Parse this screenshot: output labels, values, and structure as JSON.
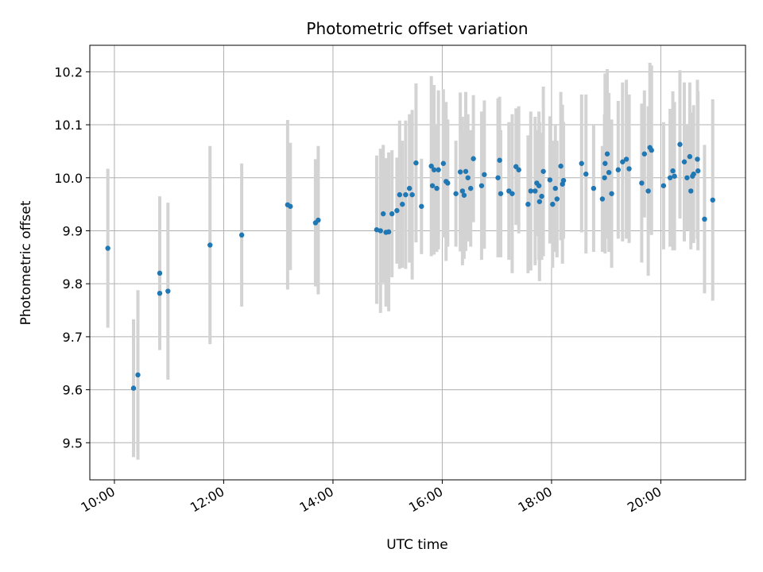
{
  "chart_data": {
    "type": "scatter",
    "title": "Photometric offset variation",
    "xlabel": "UTC time",
    "ylabel": "Photometric offset",
    "x_unit": "hours UTC",
    "xlim": [
      9.55,
      21.55
    ],
    "ylim": [
      9.43,
      10.25
    ],
    "grid": true,
    "x_ticks": [
      {
        "value": 10,
        "label": "10:00"
      },
      {
        "value": 12,
        "label": "12:00"
      },
      {
        "value": 14,
        "label": "14:00"
      },
      {
        "value": 16,
        "label": "16:00"
      },
      {
        "value": 18,
        "label": "18:00"
      },
      {
        "value": 20,
        "label": "20:00"
      }
    ],
    "y_ticks": [
      {
        "value": 9.5,
        "label": "9.5"
      },
      {
        "value": 9.6,
        "label": "9.6"
      },
      {
        "value": 9.7,
        "label": "9.7"
      },
      {
        "value": 9.8,
        "label": "9.8"
      },
      {
        "value": 9.9,
        "label": "9.9"
      },
      {
        "value": 10.0,
        "label": "10.0"
      },
      {
        "value": 10.1,
        "label": "10.1"
      },
      {
        "value": 10.2,
        "label": "10.2"
      }
    ],
    "point_color": "#1f77b4",
    "errorbar_color": "#d3d3d3",
    "points": [
      [
        9.88,
        9.867,
        0.15
      ],
      [
        10.35,
        9.603,
        0.13
      ],
      [
        10.43,
        9.628,
        0.16
      ],
      [
        10.83,
        9.82,
        0.145
      ],
      [
        10.83,
        9.782,
        0.1
      ],
      [
        10.98,
        9.786,
        0.167
      ],
      [
        11.75,
        9.873,
        0.187
      ],
      [
        12.33,
        9.892,
        0.135
      ],
      [
        13.17,
        9.949,
        0.16
      ],
      [
        13.22,
        9.946,
        0.12
      ],
      [
        13.68,
        9.915,
        0.12
      ],
      [
        13.73,
        9.92,
        0.14
      ],
      [
        14.8,
        9.902,
        0.14
      ],
      [
        14.87,
        9.9,
        0.155
      ],
      [
        14.92,
        9.932,
        0.13
      ],
      [
        14.97,
        9.897,
        0.14
      ],
      [
        15.02,
        9.898,
        0.15
      ],
      [
        15.08,
        9.932,
        0.12
      ],
      [
        15.17,
        9.938,
        0.1
      ],
      [
        15.22,
        9.968,
        0.14
      ],
      [
        15.27,
        9.95,
        0.12
      ],
      [
        15.33,
        9.968,
        0.14
      ],
      [
        15.4,
        9.98,
        0.14
      ],
      [
        15.45,
        9.968,
        0.16
      ],
      [
        15.52,
        10.028,
        0.15
      ],
      [
        15.62,
        9.946,
        0.09
      ],
      [
        15.8,
        10.022,
        0.17
      ],
      [
        15.82,
        9.985,
        0.13
      ],
      [
        15.85,
        10.015,
        0.16
      ],
      [
        15.9,
        9.98,
        0.12
      ],
      [
        15.93,
        10.015,
        0.15
      ],
      [
        16.02,
        10.027,
        0.14
      ],
      [
        16.07,
        9.993,
        0.15
      ],
      [
        16.1,
        9.99,
        0.12
      ],
      [
        16.25,
        9.97,
        0.1
      ],
      [
        16.33,
        10.011,
        0.15
      ],
      [
        16.37,
        9.975,
        0.14
      ],
      [
        16.4,
        9.967,
        0.12
      ],
      [
        16.43,
        10.012,
        0.15
      ],
      [
        16.47,
        10.0,
        0.12
      ],
      [
        16.52,
        9.98,
        0.11
      ],
      [
        16.57,
        10.036,
        0.12
      ],
      [
        16.72,
        9.985,
        0.14
      ],
      [
        16.77,
        10.006,
        0.14
      ],
      [
        17.02,
        10.0,
        0.15
      ],
      [
        17.05,
        10.033,
        0.12
      ],
      [
        17.07,
        9.97,
        0.12
      ],
      [
        17.22,
        9.975,
        0.13
      ],
      [
        17.28,
        9.97,
        0.15
      ],
      [
        17.35,
        10.021,
        0.11
      ],
      [
        17.4,
        10.015,
        0.12
      ],
      [
        17.57,
        9.95,
        0.13
      ],
      [
        17.62,
        9.975,
        0.15
      ],
      [
        17.7,
        9.975,
        0.14
      ],
      [
        17.73,
        9.99,
        0.1
      ],
      [
        17.77,
        9.985,
        0.14
      ],
      [
        17.78,
        9.955,
        0.15
      ],
      [
        17.82,
        9.965,
        0.12
      ],
      [
        17.85,
        10.012,
        0.16
      ],
      [
        17.97,
        9.996,
        0.12
      ],
      [
        18.02,
        9.95,
        0.12
      ],
      [
        18.07,
        9.98,
        0.12
      ],
      [
        18.1,
        9.96,
        0.11
      ],
      [
        18.17,
        10.022,
        0.14
      ],
      [
        18.2,
        9.988,
        0.15
      ],
      [
        18.22,
        9.995,
        0.11
      ],
      [
        18.55,
        10.027,
        0.13
      ],
      [
        18.63,
        10.007,
        0.15
      ],
      [
        18.77,
        9.98,
        0.12
      ],
      [
        18.93,
        9.96,
        0.1
      ],
      [
        18.97,
        10.0,
        0.12
      ],
      [
        18.98,
        10.027,
        0.17
      ],
      [
        19.02,
        10.045,
        0.16
      ],
      [
        19.05,
        10.01,
        0.15
      ],
      [
        19.1,
        9.97,
        0.14
      ],
      [
        19.22,
        10.015,
        0.13
      ],
      [
        19.3,
        10.03,
        0.15
      ],
      [
        19.37,
        10.035,
        0.15
      ],
      [
        19.42,
        10.017,
        0.14
      ],
      [
        19.65,
        9.99,
        0.15
      ],
      [
        19.7,
        10.045,
        0.12
      ],
      [
        19.77,
        9.975,
        0.16
      ],
      [
        19.8,
        10.057,
        0.16
      ],
      [
        19.83,
        10.052,
        0.16
      ],
      [
        20.05,
        9.985,
        0.12
      ],
      [
        20.17,
        10.0,
        0.13
      ],
      [
        20.22,
        10.013,
        0.15
      ],
      [
        20.25,
        10.003,
        0.14
      ],
      [
        20.35,
        10.063,
        0.14
      ],
      [
        20.43,
        10.03,
        0.15
      ],
      [
        20.48,
        10.0,
        0.1
      ],
      [
        20.53,
        10.04,
        0.14
      ],
      [
        20.55,
        9.975,
        0.11
      ],
      [
        20.58,
        10.003,
        0.12
      ],
      [
        20.6,
        10.007,
        0.13
      ],
      [
        20.67,
        10.035,
        0.15
      ],
      [
        20.68,
        10.013,
        0.15
      ],
      [
        20.8,
        9.922,
        0.14
      ],
      [
        20.95,
        9.958,
        0.19
      ]
    ]
  }
}
